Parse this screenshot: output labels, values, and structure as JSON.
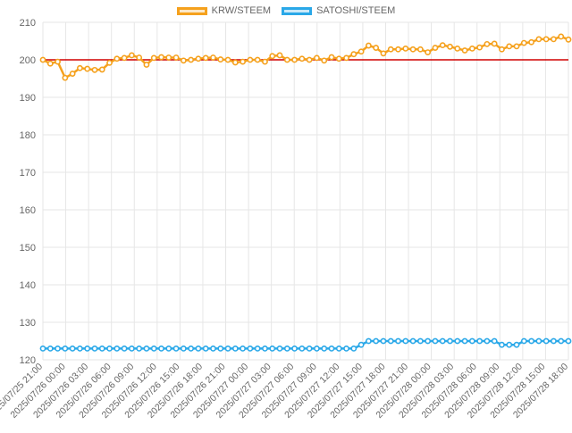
{
  "chart_data": {
    "type": "line",
    "legend_position": "top",
    "grid": true,
    "ylim": [
      120,
      210
    ],
    "yticks": [
      120,
      130,
      140,
      150,
      160,
      170,
      180,
      190,
      200,
      210
    ],
    "reference_line": {
      "value": 200,
      "color": "#d00000"
    },
    "x_tick_labels": [
      "2025/07/25 21:00",
      "2025/07/26 00:00",
      "2025/07/26 03:00",
      "2025/07/26 06:00",
      "2025/07/26 09:00",
      "2025/07/26 12:00",
      "2025/07/26 15:00",
      "2025/07/26 18:00",
      "2025/07/26 21:00",
      "2025/07/27 00:00",
      "2025/07/27 03:00",
      "2025/07/27 06:00",
      "2025/07/27 09:00",
      "2025/07/27 12:00",
      "2025/07/27 15:00",
      "2025/07/27 18:00",
      "2025/07/27 21:00",
      "2025/07/28 00:00",
      "2025/07/28 03:00",
      "2025/07/28 06:00",
      "2025/07/28 09:00",
      "2025/07/28 12:00",
      "2025/07/28 15:00",
      "2025/07/28 18:00"
    ],
    "series": [
      {
        "name": "KRW/STEEM",
        "color": "#f5a11d",
        "values": [
          200.0,
          199.0,
          199.5,
          195.2,
          196.3,
          197.8,
          197.6,
          197.3,
          197.4,
          199.2,
          200.3,
          200.5,
          201.2,
          200.6,
          198.7,
          200.5,
          200.7,
          200.6,
          200.6,
          199.8,
          200.0,
          200.3,
          200.5,
          200.6,
          200.1,
          200.0,
          199.3,
          199.5,
          200.0,
          200.0,
          199.5,
          201.0,
          201.2,
          200.0,
          200.0,
          200.3,
          200.0,
          200.5,
          199.8,
          200.7,
          200.3,
          200.5,
          201.5,
          202.2,
          203.8,
          203.2,
          201.7,
          202.8,
          202.8,
          203.0,
          202.8,
          202.8,
          202.0,
          203.2,
          203.9,
          203.5,
          203.0,
          202.5,
          203.0,
          203.3,
          204.2,
          204.3,
          202.8,
          203.6,
          203.6,
          204.5,
          204.7,
          205.5,
          205.5,
          205.5,
          206.2,
          205.4
        ]
      },
      {
        "name": "SATOSHI/STEEM",
        "color": "#2aa8e8",
        "values": [
          123,
          123,
          123,
          123,
          123,
          123,
          123,
          123,
          123,
          123,
          123,
          123,
          123,
          123,
          123,
          123,
          123,
          123,
          123,
          123,
          123,
          123,
          123,
          123,
          123,
          123,
          123,
          123,
          123,
          123,
          123,
          123,
          123,
          123,
          123,
          123,
          123,
          123,
          123,
          123,
          123,
          123,
          123,
          124,
          125,
          125,
          125,
          125,
          125,
          125,
          125,
          125,
          125,
          125,
          125,
          125,
          125,
          125,
          125,
          125,
          125,
          125,
          124,
          124,
          124,
          125,
          125,
          125,
          125,
          125,
          125,
          125
        ]
      }
    ]
  }
}
